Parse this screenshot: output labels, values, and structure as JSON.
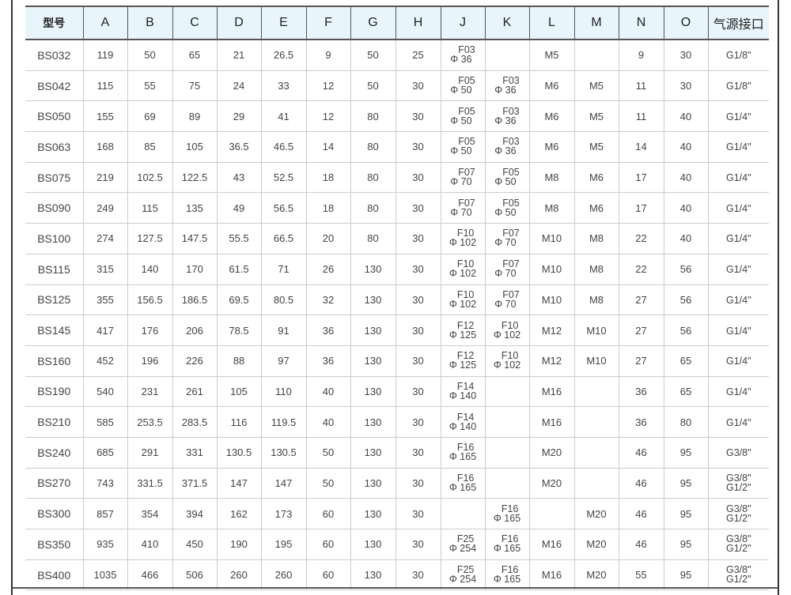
{
  "headers": [
    "型号",
    "A",
    "B",
    "C",
    "D",
    "E",
    "F",
    "G",
    "H",
    "J",
    "K",
    "L",
    "M",
    "N",
    "O",
    "气源接口"
  ],
  "rows": [
    [
      "BS032",
      "119",
      "50",
      "65",
      "21",
      "26.5",
      "9",
      "50",
      "25",
      [
        "F03",
        "Φ 36"
      ],
      [],
      "M5",
      "",
      "9",
      "30",
      [
        "G1/8\""
      ]
    ],
    [
      "BS042",
      "115",
      "55",
      "75",
      "24",
      "33",
      "12",
      "50",
      "30",
      [
        "F05",
        "Φ 50"
      ],
      [
        "F03",
        "Φ 36"
      ],
      "M6",
      "M5",
      "11",
      "30",
      [
        "G1/8\""
      ]
    ],
    [
      "BS050",
      "155",
      "69",
      "89",
      "29",
      "41",
      "12",
      "80",
      "30",
      [
        "F05",
        "Φ 50"
      ],
      [
        "F03",
        "Φ 36"
      ],
      "M6",
      "M5",
      "11",
      "40",
      [
        "G1/4\""
      ]
    ],
    [
      "BS063",
      "168",
      "85",
      "105",
      "36.5",
      "46.5",
      "14",
      "80",
      "30",
      [
        "F05",
        "Φ 50"
      ],
      [
        "F03",
        "Φ 36"
      ],
      "M6",
      "M5",
      "14",
      "40",
      [
        "G1/4\""
      ]
    ],
    [
      "BS075",
      "219",
      "102.5",
      "122.5",
      "43",
      "52.5",
      "18",
      "80",
      "30",
      [
        "F07",
        "Φ 70"
      ],
      [
        "F05",
        "Φ 50"
      ],
      "M8",
      "M6",
      "17",
      "40",
      [
        "G1/4\""
      ]
    ],
    [
      "BS090",
      "249",
      "115",
      "135",
      "49",
      "56.5",
      "18",
      "80",
      "30",
      [
        "F07",
        "Φ 70"
      ],
      [
        "F05",
        "Φ 50"
      ],
      "M8",
      "M6",
      "17",
      "40",
      [
        "G1/4\""
      ]
    ],
    [
      "BS100",
      "274",
      "127.5",
      "147.5",
      "55.5",
      "66.5",
      "20",
      "80",
      "30",
      [
        "F10",
        "Φ 102"
      ],
      [
        "F07",
        "Φ 70"
      ],
      "M10",
      "M8",
      "22",
      "40",
      [
        "G1/4\""
      ]
    ],
    [
      "BS115",
      "315",
      "140",
      "170",
      "61.5",
      "71",
      "26",
      "130",
      "30",
      [
        "F10",
        "Φ 102"
      ],
      [
        "F07",
        "Φ 70"
      ],
      "M10",
      "M8",
      "22",
      "56",
      [
        "G1/4\""
      ]
    ],
    [
      "BS125",
      "355",
      "156.5",
      "186.5",
      "69.5",
      "80.5",
      "32",
      "130",
      "30",
      [
        "F10",
        "Φ 102"
      ],
      [
        "F07",
        "Φ 70"
      ],
      "M10",
      "M8",
      "27",
      "56",
      [
        "G1/4\""
      ]
    ],
    [
      "BS145",
      "417",
      "176",
      "206",
      "78.5",
      "91",
      "36",
      "130",
      "30",
      [
        "F12",
        "Φ 125"
      ],
      [
        "F10",
        "Φ 102"
      ],
      "M12",
      "M10",
      "27",
      "56",
      [
        "G1/4\""
      ]
    ],
    [
      "BS160",
      "452",
      "196",
      "226",
      "88",
      "97",
      "36",
      "130",
      "30",
      [
        "F12",
        "Φ 125"
      ],
      [
        "F10",
        "Φ 102"
      ],
      "M12",
      "M10",
      "27",
      "65",
      [
        "G1/4\""
      ]
    ],
    [
      "BS190",
      "540",
      "231",
      "261",
      "105",
      "110",
      "40",
      "130",
      "30",
      [
        "F14",
        "Φ 140"
      ],
      [],
      "M16",
      "",
      "36",
      "65",
      [
        "G1/4\""
      ]
    ],
    [
      "BS210",
      "585",
      "253.5",
      "283.5",
      "116",
      "119.5",
      "40",
      "130",
      "30",
      [
        "F14",
        "Φ 140"
      ],
      [],
      "M16",
      "",
      "36",
      "80",
      [
        "G1/4\""
      ]
    ],
    [
      "BS240",
      "685",
      "291",
      "331",
      "130.5",
      "130.5",
      "50",
      "130",
      "30",
      [
        "F16",
        "Φ 165"
      ],
      [],
      "M20",
      "",
      "46",
      "95",
      [
        "G3/8\""
      ]
    ],
    [
      "BS270",
      "743",
      "331.5",
      "371.5",
      "147",
      "147",
      "50",
      "130",
      "30",
      [
        "F16",
        "Φ 165"
      ],
      [],
      "M20",
      "",
      "46",
      "95",
      [
        "G3/8\"",
        "G1/2\""
      ]
    ],
    [
      "BS300",
      "857",
      "354",
      "394",
      "162",
      "173",
      "60",
      "130",
      "30",
      [],
      [
        "F16",
        "Φ 165"
      ],
      "",
      "M20",
      "46",
      "95",
      [
        "G3/8\"",
        "G1/2\""
      ]
    ],
    [
      "BS350",
      "935",
      "410",
      "450",
      "190",
      "195",
      "60",
      "130",
      "30",
      [
        "F25",
        "Φ 254"
      ],
      [
        "F16",
        "Φ 165"
      ],
      "M16",
      "M20",
      "46",
      "95",
      [
        "G3/8\"",
        "G1/2\""
      ]
    ],
    [
      "BS400",
      "1035",
      "466",
      "506",
      "260",
      "260",
      "60",
      "130",
      "30",
      [
        "F25",
        "Φ 254"
      ],
      [
        "F16",
        "Φ 165"
      ],
      "M16",
      "M20",
      "55",
      "95",
      [
        "G3/8\"",
        "G1/2\""
      ]
    ]
  ],
  "colors": {
    "header_bg": "#e9f5fc",
    "border_dark": "#555555",
    "grid": "#cccccc"
  }
}
